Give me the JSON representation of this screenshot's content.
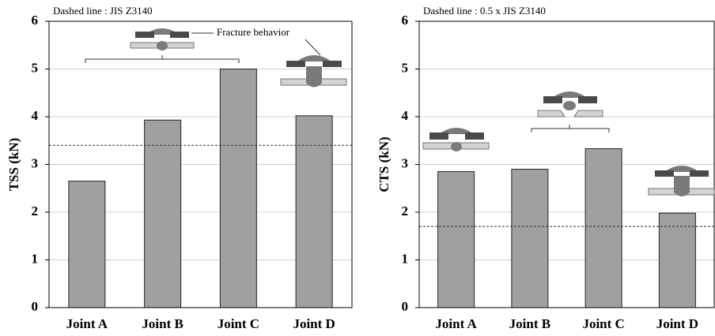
{
  "chart_data": [
    {
      "type": "bar",
      "note": "Dashed line : JIS Z3140",
      "ylabel": "TSS (kN)",
      "annotation": "Fracture behavior",
      "categories": [
        "Joint A",
        "Joint B",
        "Joint C",
        "Joint D"
      ],
      "values": [
        2.65,
        3.93,
        5.0,
        4.02
      ],
      "color": "#a0a0a0",
      "reference_line": 3.4,
      "ylim": [
        0,
        6
      ],
      "yticks": [
        0,
        1,
        2,
        3,
        4,
        5,
        6
      ],
      "grid": true
    },
    {
      "type": "bar",
      "note": "Dashed line : 0.5 x JIS Z3140",
      "ylabel": "CTS (kN)",
      "categories": [
        "Joint A",
        "Joint B",
        "Joint C",
        "Joint D"
      ],
      "values": [
        2.85,
        2.9,
        3.33,
        1.98
      ],
      "color": "#a0a0a0",
      "reference_line": 1.7,
      "ylim": [
        0,
        6
      ],
      "yticks": [
        0,
        1,
        2,
        3,
        4,
        5,
        6
      ],
      "grid": true
    }
  ]
}
